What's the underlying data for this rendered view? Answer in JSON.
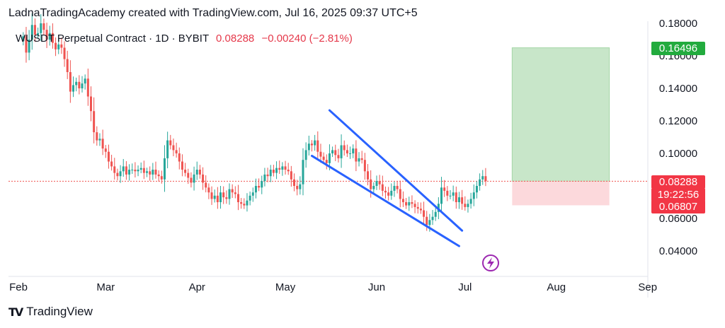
{
  "header": {
    "attribution": "LadnaTradingAcademy created with TradingView.com, Jul 16, 2025 09:37 UTC+5",
    "symbol": "WUSDT Perpetual Contract · 1D · BYBIT",
    "last_price": "0.08288",
    "change": "−0.00240 (−2.81%)"
  },
  "tags": {
    "target": "0.16496",
    "current": "0.08288",
    "timer": "19:22:56",
    "stop": "0.06807"
  },
  "footer": {
    "brand": "TradingView"
  },
  "colors": {
    "up": "#26a69a",
    "down": "#ef5350",
    "pattern": "#2962ff",
    "target_zone": "#c8e6c9",
    "stop_zone": "#fcd9dc",
    "current_line": "#ef5350",
    "lightning": "#9c27b0"
  },
  "chart_data": {
    "type": "candlestick",
    "x_axis": {
      "ticks": [
        "Feb",
        "Mar",
        "Apr",
        "May",
        "Jun",
        "Jul",
        "Aug",
        "Sep"
      ],
      "range": [
        "2025-01-27",
        "2025-09-29"
      ]
    },
    "y_axis": {
      "ticks": [
        0.04,
        0.06,
        0.08,
        0.1,
        0.12,
        0.14,
        0.16,
        0.18
      ],
      "tick_labels": [
        "0.04000",
        "0.06000",
        "0.08000",
        "0.10000",
        "0.12000",
        "0.14000",
        "0.16000",
        "0.18000"
      ],
      "range": [
        0.03,
        0.185
      ],
      "side": "right"
    },
    "current_price": 0.08288,
    "position": {
      "entry": 0.08288,
      "target": 0.16496,
      "stop": 0.06807,
      "start": "2025-07-17",
      "end": "2025-08-19"
    },
    "pattern_lines": [
      {
        "name": "upper",
        "from": [
          "2025-05-16",
          0.1265
        ],
        "to": [
          "2025-06-30",
          0.0525
        ]
      },
      {
        "name": "lower",
        "from": [
          "2025-05-10",
          0.0985
        ],
        "to": [
          "2025-06-29",
          0.043
        ]
      }
    ],
    "closes": [
      0.172,
      0.162,
      0.17,
      0.179,
      0.173,
      0.174,
      0.18,
      0.176,
      0.17,
      0.174,
      0.168,
      0.164,
      0.167,
      0.165,
      0.158,
      0.15,
      0.138,
      0.142,
      0.144,
      0.14,
      0.143,
      0.146,
      0.135,
      0.126,
      0.113,
      0.108,
      0.109,
      0.103,
      0.101,
      0.095,
      0.092,
      0.088,
      0.086,
      0.089,
      0.092,
      0.087,
      0.09,
      0.09,
      0.089,
      0.09,
      0.091,
      0.088,
      0.089,
      0.087,
      0.09,
      0.087,
      0.086,
      0.084,
      0.097,
      0.108,
      0.105,
      0.102,
      0.1,
      0.095,
      0.09,
      0.088,
      0.085,
      0.082,
      0.087,
      0.09,
      0.087,
      0.082,
      0.079,
      0.076,
      0.072,
      0.074,
      0.07,
      0.076,
      0.073,
      0.072,
      0.078,
      0.076,
      0.075,
      0.07,
      0.069,
      0.068,
      0.071,
      0.074,
      0.076,
      0.08,
      0.079,
      0.083,
      0.087,
      0.086,
      0.09,
      0.088,
      0.091,
      0.09,
      0.092,
      0.09,
      0.089,
      0.084,
      0.08,
      0.078,
      0.081,
      0.096,
      0.102,
      0.106,
      0.105,
      0.108,
      0.101,
      0.098,
      0.096,
      0.094,
      0.1,
      0.102,
      0.099,
      0.097,
      0.105,
      0.102,
      0.1,
      0.1,
      0.103,
      0.095,
      0.097,
      0.096,
      0.089,
      0.084,
      0.078,
      0.08,
      0.083,
      0.081,
      0.077,
      0.076,
      0.074,
      0.077,
      0.08,
      0.078,
      0.072,
      0.07,
      0.068,
      0.07,
      0.069,
      0.067,
      0.066,
      0.065,
      0.061,
      0.056,
      0.059,
      0.061,
      0.064,
      0.069,
      0.079,
      0.077,
      0.074,
      0.074,
      0.076,
      0.07,
      0.073,
      0.069,
      0.067,
      0.069,
      0.072,
      0.076,
      0.08,
      0.084,
      0.086,
      0.0829
    ]
  }
}
